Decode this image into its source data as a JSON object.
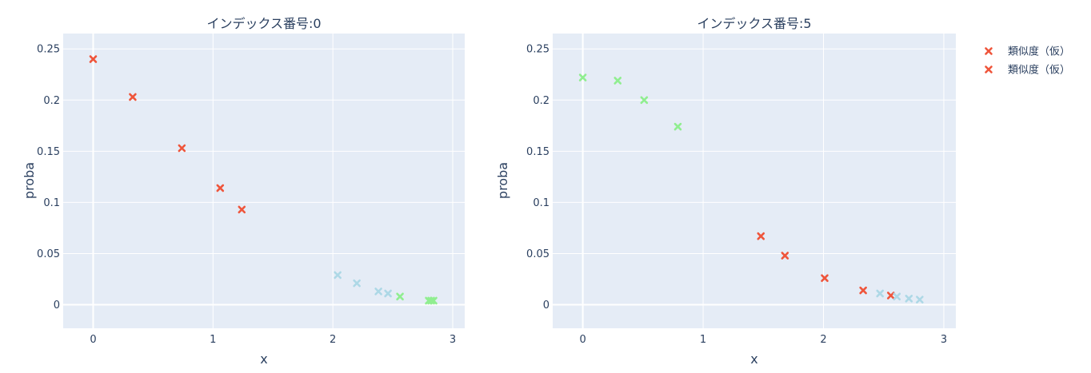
{
  "legend": {
    "placement": "top-right",
    "entries": [
      {
        "name": "類似度（仮）",
        "color": "#ef553b"
      },
      {
        "name": "類似度（仮）",
        "color": "#ef553b"
      }
    ]
  },
  "colors": {
    "red": "#ef553b",
    "lightblue": "#add8e6",
    "lightgreen": "#90ee90",
    "plot_bg": "#e5ecf6",
    "grid": "#ffffff"
  },
  "chart_data": [
    {
      "type": "scatter",
      "title": "インデックス番号:0",
      "xlabel": "x",
      "ylabel": "proba",
      "xlim": [
        -0.25,
        3.1
      ],
      "ylim": [
        -0.023,
        0.265
      ],
      "xticks": [
        0,
        1,
        2,
        3
      ],
      "xtick_labels": [
        "0",
        "1",
        "2",
        "3"
      ],
      "yticks": [
        0,
        0.05,
        0.1,
        0.15,
        0.2,
        0.25
      ],
      "ytick_labels": [
        "0",
        "0.05",
        "0.1",
        "0.15",
        "0.2",
        "0.25"
      ],
      "grid": true,
      "marker": "x",
      "points": [
        {
          "x": 0.0,
          "y": 0.24,
          "color": "#ef553b"
        },
        {
          "x": 0.33,
          "y": 0.203,
          "color": "#ef553b"
        },
        {
          "x": 0.74,
          "y": 0.153,
          "color": "#ef553b"
        },
        {
          "x": 1.06,
          "y": 0.114,
          "color": "#ef553b"
        },
        {
          "x": 1.24,
          "y": 0.093,
          "color": "#ef553b"
        },
        {
          "x": 2.04,
          "y": 0.029,
          "color": "#add8e6"
        },
        {
          "x": 2.2,
          "y": 0.021,
          "color": "#add8e6"
        },
        {
          "x": 2.38,
          "y": 0.013,
          "color": "#add8e6"
        },
        {
          "x": 2.46,
          "y": 0.011,
          "color": "#add8e6"
        },
        {
          "x": 2.56,
          "y": 0.008,
          "color": "#90ee90"
        },
        {
          "x": 2.8,
          "y": 0.004,
          "color": "#90ee90"
        },
        {
          "x": 2.82,
          "y": 0.004,
          "color": "#90ee90"
        },
        {
          "x": 2.84,
          "y": 0.004,
          "color": "#90ee90"
        }
      ]
    },
    {
      "type": "scatter",
      "title": "インデックス番号:5",
      "xlabel": "x",
      "ylabel": "proba",
      "xlim": [
        -0.25,
        3.1
      ],
      "ylim": [
        -0.023,
        0.265
      ],
      "xticks": [
        0,
        1,
        2,
        3
      ],
      "xtick_labels": [
        "0",
        "1",
        "2",
        "3"
      ],
      "yticks": [
        0,
        0.05,
        0.1,
        0.15,
        0.2,
        0.25
      ],
      "ytick_labels": [
        "0",
        "0.05",
        "0.1",
        "0.15",
        "0.2",
        "0.25"
      ],
      "grid": true,
      "marker": "x",
      "points": [
        {
          "x": 0.0,
          "y": 0.222,
          "color": "#90ee90"
        },
        {
          "x": 0.29,
          "y": 0.219,
          "color": "#90ee90"
        },
        {
          "x": 0.51,
          "y": 0.2,
          "color": "#90ee90"
        },
        {
          "x": 0.79,
          "y": 0.174,
          "color": "#90ee90"
        },
        {
          "x": 1.48,
          "y": 0.067,
          "color": "#ef553b"
        },
        {
          "x": 1.68,
          "y": 0.048,
          "color": "#ef553b"
        },
        {
          "x": 2.01,
          "y": 0.026,
          "color": "#ef553b"
        },
        {
          "x": 2.33,
          "y": 0.014,
          "color": "#ef553b"
        },
        {
          "x": 2.47,
          "y": 0.011,
          "color": "#add8e6"
        },
        {
          "x": 2.56,
          "y": 0.009,
          "color": "#ef553b"
        },
        {
          "x": 2.61,
          "y": 0.008,
          "color": "#add8e6"
        },
        {
          "x": 2.71,
          "y": 0.006,
          "color": "#add8e6"
        },
        {
          "x": 2.8,
          "y": 0.005,
          "color": "#add8e6"
        }
      ]
    }
  ]
}
